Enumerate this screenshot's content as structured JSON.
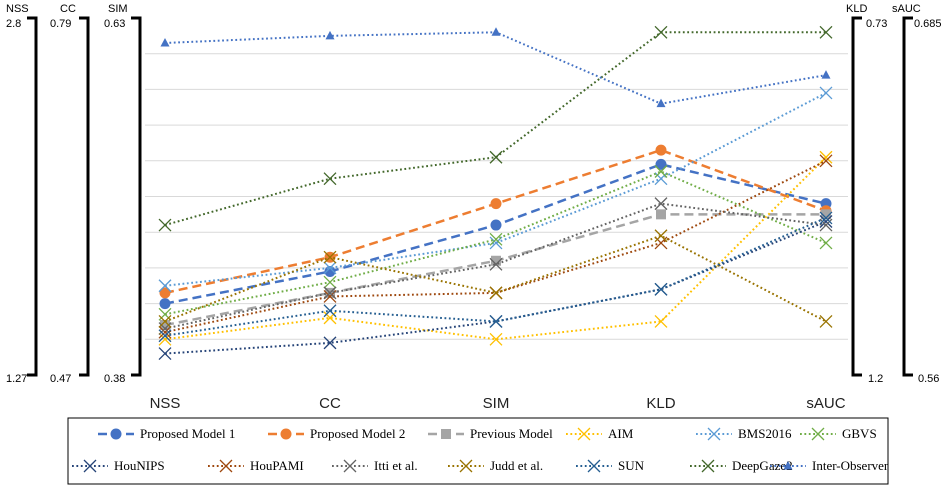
{
  "chart_data": {
    "type": "line",
    "categories": [
      "NSS",
      "CC",
      "SIM",
      "KLD",
      "sAUC"
    ],
    "axes": {
      "left": [
        {
          "name": "NSS",
          "top": "2.8",
          "bottom": "1.27"
        },
        {
          "name": "CC",
          "top": "0.79",
          "bottom": "0.47"
        },
        {
          "name": "SIM",
          "top": "0.63",
          "bottom": "0.38"
        }
      ],
      "right": [
        {
          "name": "KLD",
          "top": "0.73",
          "bottom": "1.2"
        },
        {
          "name": "sAUC",
          "top": "0.685",
          "bottom": "0.56"
        }
      ]
    },
    "plot_scale": {
      "ylim": [
        0,
        100
      ],
      "note": "values are positions in percent of the plot height (0 = bottom tick, 100 = top tick) on each category's own axis"
    },
    "grid": true,
    "legend_position": "bottom",
    "series": [
      {
        "name": "Proposed Model 1",
        "color": "#4472C4",
        "dash": "dash",
        "width": 2.5,
        "marker": "circle",
        "values": [
          20,
          29,
          42,
          59,
          48
        ]
      },
      {
        "name": "Proposed Model 2",
        "color": "#ED7D31",
        "dash": "dash",
        "width": 2.5,
        "marker": "circle",
        "values": [
          23,
          33,
          48,
          63,
          46
        ]
      },
      {
        "name": "Previous Model",
        "color": "#A5A5A5",
        "dash": "dash",
        "width": 2.5,
        "marker": "square",
        "values": [
          14,
          23,
          32,
          45,
          45
        ]
      },
      {
        "name": "AIM",
        "color": "#FFC000",
        "dash": "dot",
        "width": 2,
        "marker": "x",
        "values": [
          10,
          16,
          10,
          15,
          61
        ]
      },
      {
        "name": "BMS2016",
        "color": "#5B9BD5",
        "dash": "dot",
        "width": 2,
        "marker": "x",
        "values": [
          25,
          30,
          37,
          55,
          79
        ]
      },
      {
        "name": "GBVS",
        "color": "#70AD47",
        "dash": "dot",
        "width": 2,
        "marker": "x",
        "values": [
          17,
          26,
          38,
          57,
          37
        ]
      },
      {
        "name": "HouNIPS",
        "color": "#264478",
        "dash": "dot",
        "width": 2,
        "marker": "x",
        "values": [
          6,
          9,
          15,
          24,
          43
        ]
      },
      {
        "name": "HouPAMI",
        "color": "#9E480E",
        "dash": "dot",
        "width": 2,
        "marker": "x",
        "values": [
          12,
          22,
          23,
          37,
          60
        ]
      },
      {
        "name": "Itti et al.",
        "color": "#636363",
        "dash": "dot",
        "width": 2,
        "marker": "x",
        "values": [
          13,
          23,
          31,
          48,
          42
        ]
      },
      {
        "name": "Judd et al.",
        "color": "#997300",
        "dash": "dot",
        "width": 2,
        "marker": "x",
        "values": [
          15,
          33,
          23,
          39,
          15
        ]
      },
      {
        "name": "SUN",
        "color": "#255E91",
        "dash": "dot",
        "width": 2,
        "marker": "x",
        "values": [
          11,
          18,
          15,
          24,
          44
        ]
      },
      {
        "name": "DeepGaze2",
        "color": "#43682B",
        "dash": "dot",
        "width": 2,
        "marker": "x",
        "values": [
          42,
          55,
          61,
          96,
          96
        ]
      },
      {
        "name": "Inter-Observer",
        "color": "#4472C4",
        "dash": "dot",
        "width": 2,
        "marker": "triangle",
        "values": [
          93,
          95,
          96,
          76,
          84
        ]
      }
    ]
  }
}
